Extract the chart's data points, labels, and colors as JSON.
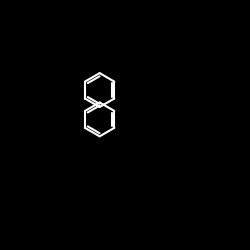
{
  "bg": "#000000",
  "bond_color": "#ffffff",
  "bond_lw": 1.5,
  "atom_colors": {
    "O": "#ff0000",
    "N": "#0000ff",
    "S": "#ccaa00",
    "Cl": "#00cc00",
    "C": "#ffffff"
  },
  "font_size": 7,
  "figsize": [
    2.5,
    2.5
  ],
  "dpi": 100
}
